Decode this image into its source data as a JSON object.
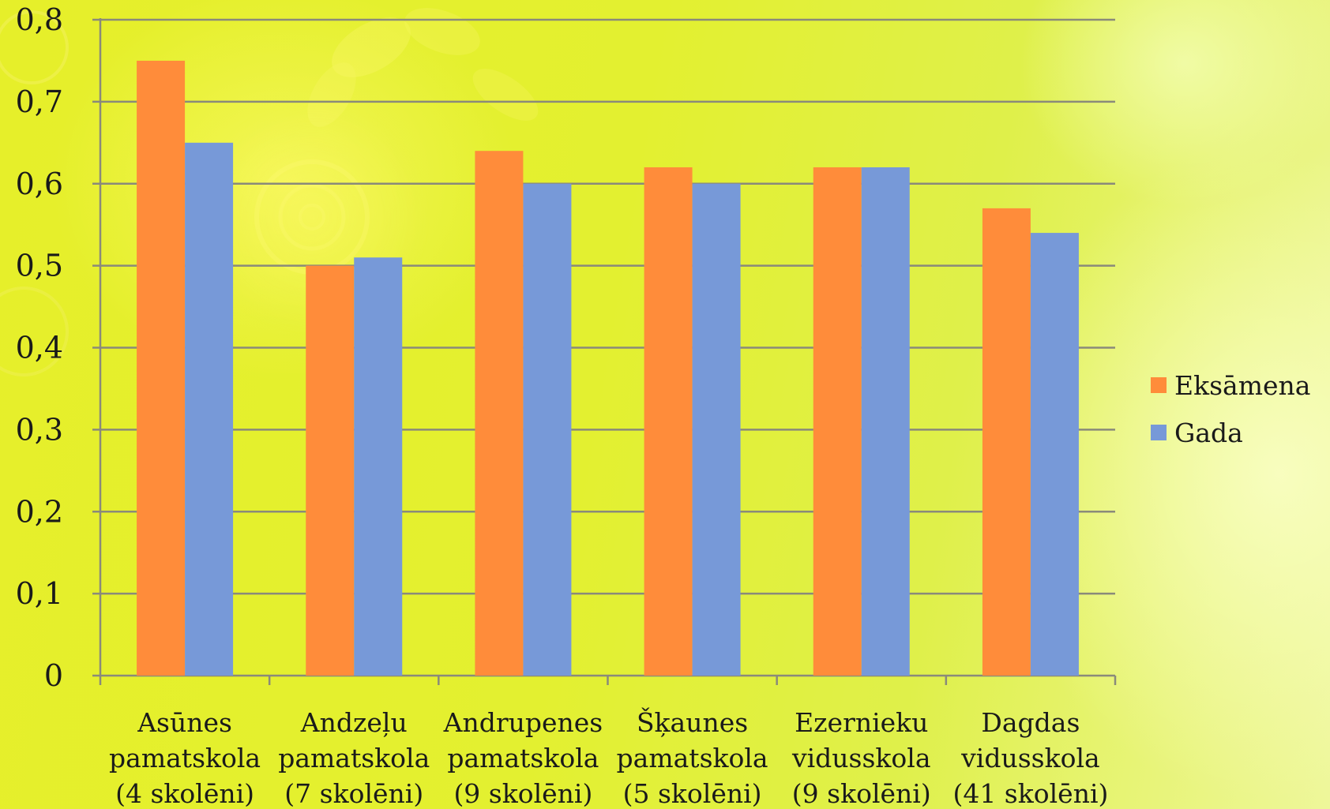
{
  "chart_data": {
    "type": "bar",
    "title": "",
    "xlabel": "",
    "ylabel": "",
    "ylim": [
      0,
      0.8
    ],
    "y_ticks": [
      "0",
      "0,1",
      "0,2",
      "0,3",
      "0,4",
      "0,5",
      "0,6",
      "0,7",
      "0,8"
    ],
    "grid": true,
    "legend_position": "right",
    "categories": [
      [
        "Asūnes",
        "pamatskola",
        "(4 skolēni)"
      ],
      [
        "Andzeļu",
        "pamatskola",
        "(7 skolēni)"
      ],
      [
        "Andrupenes",
        "pamatskola",
        "(9 skolēni)"
      ],
      [
        "Šķaunes",
        "pamatskola",
        "(5 skolēni)"
      ],
      [
        "Ezernieku",
        "vidusskola",
        "(9 skolēni)"
      ],
      [
        "Dagdas",
        "vidusskola",
        "(41 skolēni)"
      ]
    ],
    "series": [
      {
        "name": "Eksāmena",
        "color": "#ff8c3a",
        "values": [
          0.75,
          0.5,
          0.64,
          0.62,
          0.62,
          0.57
        ]
      },
      {
        "name": "Gada",
        "color": "#7799d8",
        "values": [
          0.65,
          0.51,
          0.6,
          0.6,
          0.62,
          0.54
        ]
      }
    ]
  }
}
